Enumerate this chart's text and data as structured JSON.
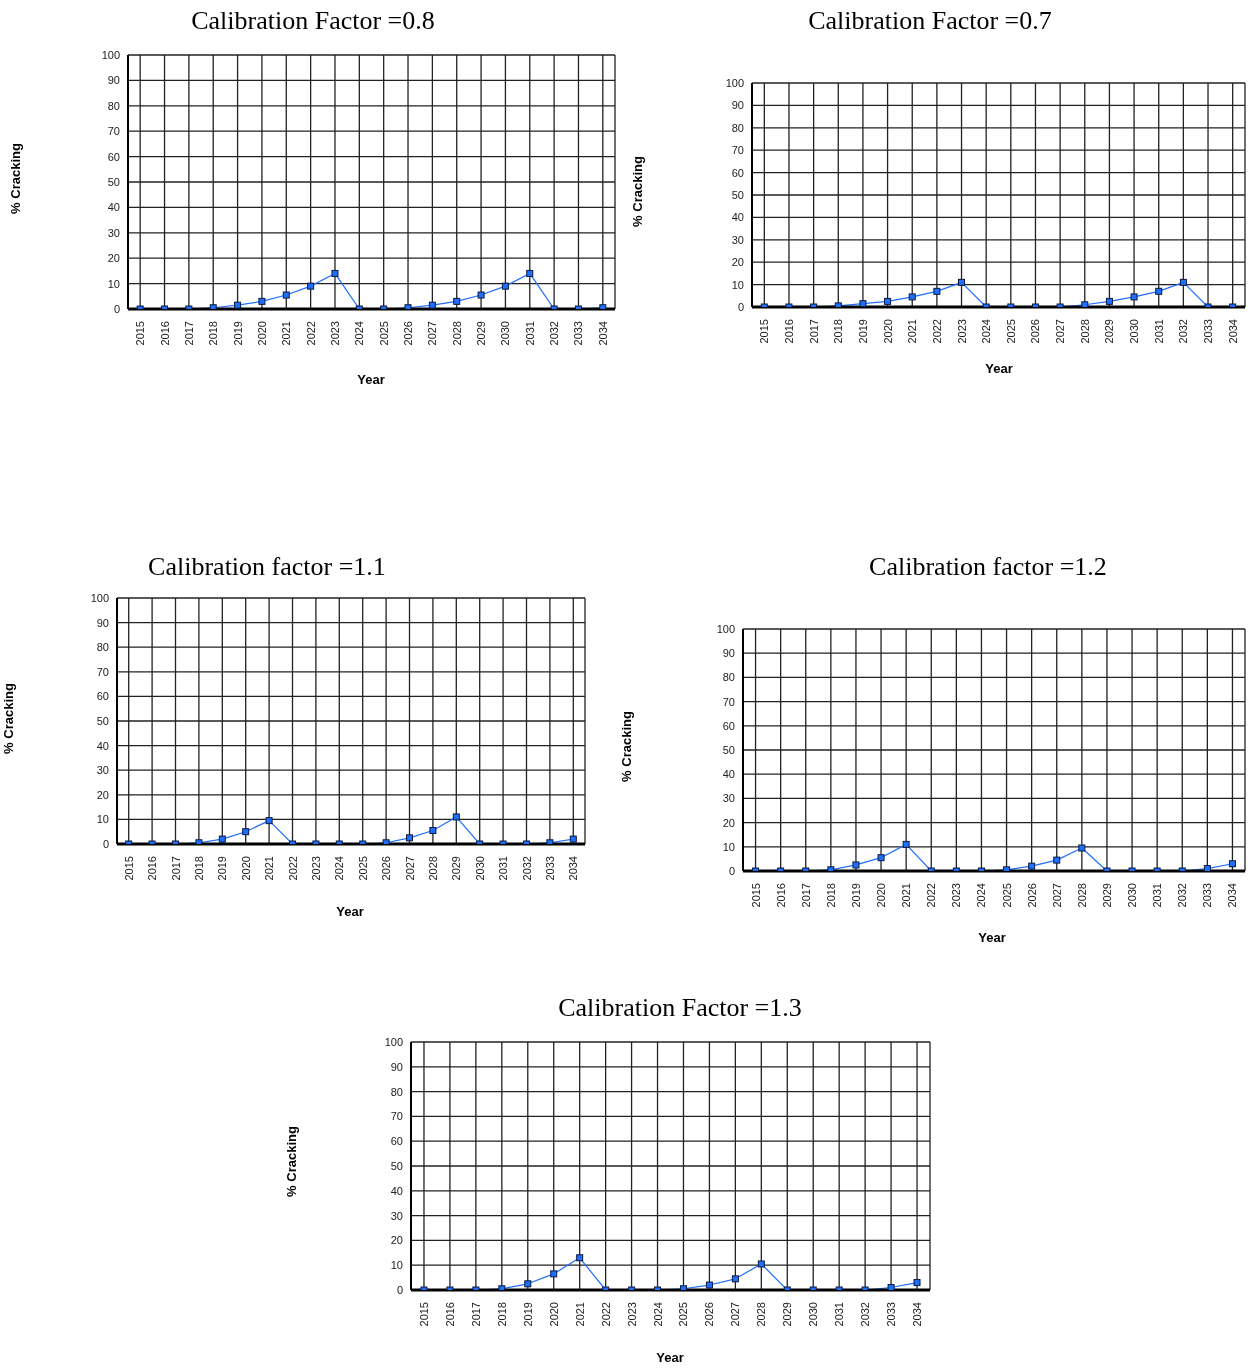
{
  "chart_data": [
    {
      "type": "line",
      "title": "Calibration Factor =0.8",
      "xlabel": "Year",
      "ylabel": "% Cracking",
      "categories": [
        "2015",
        "2016",
        "2017",
        "2018",
        "2019",
        "2020",
        "2021",
        "2022",
        "2023",
        "2024",
        "2025",
        "2026",
        "2027",
        "2028",
        "2029",
        "2030",
        "2031",
        "2032",
        "2033",
        "2034"
      ],
      "series": [
        {
          "color": "#1f6fff",
          "values": [
            0,
            0,
            0,
            0.5,
            1.5,
            3,
            5.5,
            9,
            14,
            0,
            0,
            0.5,
            1.5,
            3,
            5.5,
            9,
            14,
            0,
            0,
            0.5
          ]
        }
      ],
      "ylim": [
        0,
        100
      ],
      "yticks": [
        0,
        10,
        20,
        30,
        40,
        50,
        60,
        70,
        80,
        90,
        100
      ],
      "grid": true,
      "marker": "square",
      "line_style": "solid"
    },
    {
      "type": "line",
      "title": "Calibration Factor =0.7",
      "xlabel": "Year",
      "ylabel": "% Cracking",
      "categories": [
        "2015",
        "2016",
        "2017",
        "2018",
        "2019",
        "2020",
        "2021",
        "2022",
        "2023",
        "2024",
        "2025",
        "2026",
        "2027",
        "2028",
        "2029",
        "2030",
        "2031",
        "2032",
        "2033",
        "2034"
      ],
      "series": [
        {
          "color": "#1f6fff",
          "values": [
            0,
            0,
            0,
            0.5,
            1.5,
            2.5,
            4.5,
            7,
            11,
            0,
            0,
            0,
            0,
            1,
            2.5,
            4.5,
            7,
            11,
            0,
            0
          ]
        }
      ],
      "ylim": [
        0,
        100
      ],
      "yticks": [
        0,
        10,
        20,
        30,
        40,
        50,
        60,
        70,
        80,
        90,
        100
      ],
      "grid": true,
      "marker": "square",
      "line_style": "solid"
    },
    {
      "type": "line",
      "title": "Calibration factor =1.1",
      "xlabel": "Year",
      "ylabel": "% Cracking",
      "categories": [
        "2015",
        "2016",
        "2017",
        "2018",
        "2019",
        "2020",
        "2021",
        "2022",
        "2023",
        "2024",
        "2025",
        "2026",
        "2027",
        "2028",
        "2029",
        "2030",
        "2031",
        "2032",
        "2033",
        "2034"
      ],
      "series": [
        {
          "color": "#1f6fff",
          "values": [
            0,
            0,
            0,
            0.5,
            2,
            5,
            9.5,
            0,
            0,
            0,
            0,
            0.5,
            2.5,
            5.5,
            11,
            0,
            0,
            0,
            0.5,
            2
          ]
        }
      ],
      "ylim": [
        0,
        100
      ],
      "yticks": [
        0,
        10,
        20,
        30,
        40,
        50,
        60,
        70,
        80,
        90,
        100
      ],
      "grid": true,
      "marker": "square",
      "line_style": "solid"
    },
    {
      "type": "line",
      "title": "Calibration factor =1.2",
      "xlabel": "Year",
      "ylabel": "% Cracking",
      "categories": [
        "2015",
        "2016",
        "2017",
        "2018",
        "2019",
        "2020",
        "2021",
        "2022",
        "2023",
        "2024",
        "2025",
        "2026",
        "2027",
        "2028",
        "2029",
        "2030",
        "2031",
        "2032",
        "2033",
        "2034"
      ],
      "series": [
        {
          "color": "#1f6fff",
          "values": [
            0,
            0,
            0,
            0.5,
            2.5,
            5.5,
            11,
            0,
            0,
            0,
            0.5,
            2,
            4.5,
            9.5,
            0,
            0,
            0,
            0,
            1,
            3
          ]
        }
      ],
      "ylim": [
        0,
        100
      ],
      "yticks": [
        0,
        10,
        20,
        30,
        40,
        50,
        60,
        70,
        80,
        90,
        100
      ],
      "grid": true,
      "marker": "square",
      "line_style": "solid"
    },
    {
      "type": "line",
      "title": "Calibration Factor =1.3",
      "xlabel": "Year",
      "ylabel": "% Cracking",
      "categories": [
        "2015",
        "2016",
        "2017",
        "2018",
        "2019",
        "2020",
        "2021",
        "2022",
        "2023",
        "2024",
        "2025",
        "2026",
        "2027",
        "2028",
        "2029",
        "2030",
        "2031",
        "2032",
        "2033",
        "2034"
      ],
      "series": [
        {
          "color": "#1f6fff",
          "values": [
            0,
            0,
            0,
            0.5,
            2.5,
            6.5,
            13,
            0,
            0,
            0,
            0.5,
            2,
            4.5,
            10.5,
            0,
            0,
            0,
            0,
            1,
            3
          ]
        }
      ],
      "ylim": [
        0,
        100
      ],
      "yticks": [
        0,
        10,
        20,
        30,
        40,
        50,
        60,
        70,
        80,
        90,
        100
      ],
      "grid": true,
      "marker": "square",
      "line_style": "solid"
    }
  ]
}
